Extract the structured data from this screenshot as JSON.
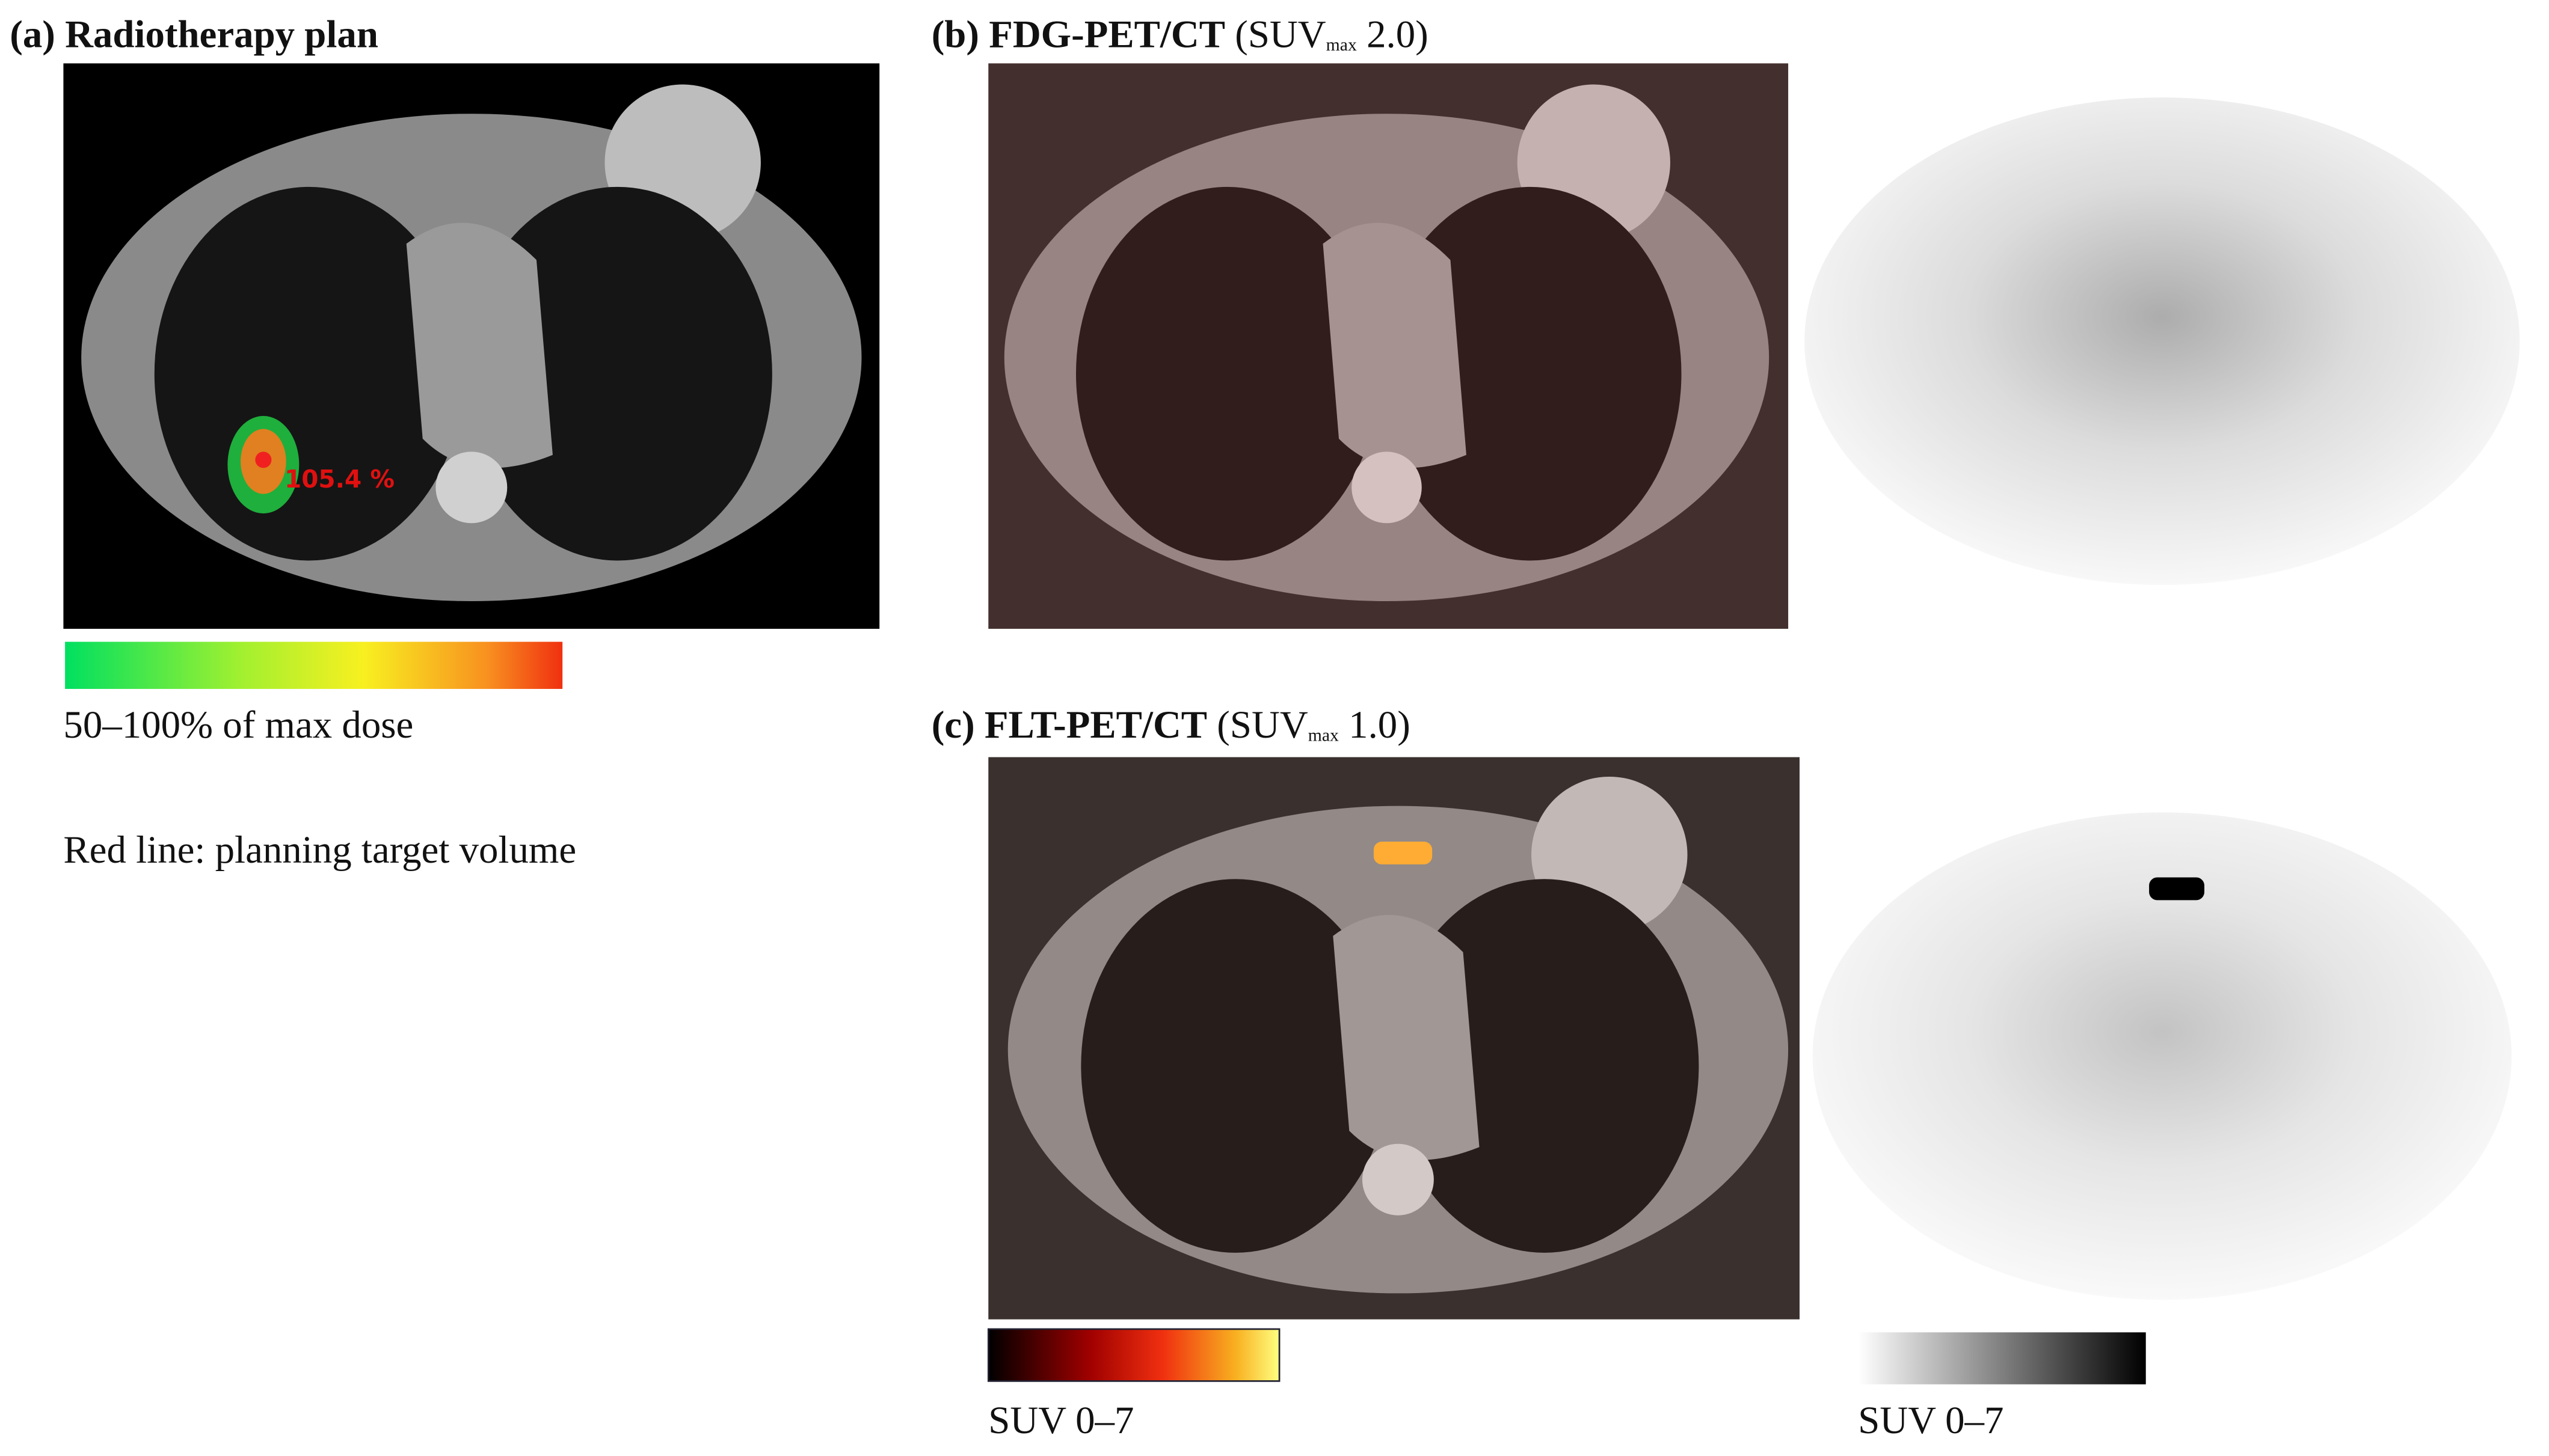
{
  "panels": {
    "a": {
      "title": "(a) Radiotherapy plan",
      "dose_label": "105.4 %",
      "legend_caption": "50–100% of max dose",
      "note": "Red line: planning target volume"
    },
    "b": {
      "title": "(b) FDG-PET/CT",
      "suv_open": "(SUV",
      "suv_subscript": "max",
      "suv_close": "2.0)"
    },
    "c": {
      "title": "(c) FLT-PET/CT",
      "suv_open": "(SUV",
      "suv_subscript": "max",
      "suv_close": "1.0)",
      "hot_scale_label": "SUV 0–7",
      "grey_scale_label": "SUV 0–7"
    }
  }
}
